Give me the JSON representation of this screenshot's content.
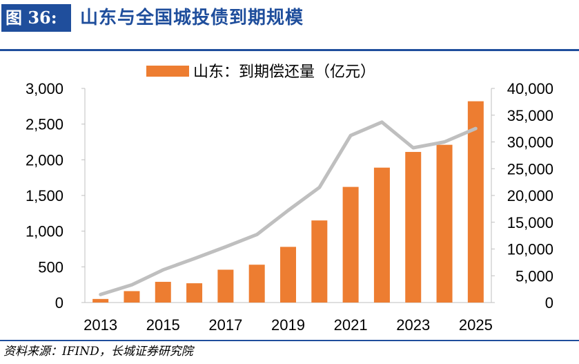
{
  "header": {
    "figure_label": "图 36:",
    "title": "山东与全国城投债到期规模"
  },
  "source_note": "资料来源：IFIND，长城证券研究院",
  "colors": {
    "brand_blue": "#1f4e9c",
    "bar": "#ed7d31",
    "line": "#bfbfbf",
    "axis": "#bfbfbf"
  },
  "chart_data": {
    "type": "bar",
    "legend": "山东：到期偿还量（亿元）",
    "legend_position": "top",
    "grid": false,
    "x": [
      "2013",
      "2014",
      "2015",
      "2016",
      "2017",
      "2018",
      "2019",
      "2020",
      "2021",
      "2022",
      "2023",
      "2024",
      "2025"
    ],
    "x_tick_labels": [
      "2013",
      "2015",
      "2017",
      "2019",
      "2021",
      "2023",
      "2025"
    ],
    "series": [
      {
        "name": "山东：到期偿还量（亿元）",
        "type": "bar",
        "axis": "left",
        "values": [
          50,
          160,
          290,
          270,
          460,
          530,
          780,
          1150,
          1620,
          1890,
          2110,
          2210,
          2820
        ]
      },
      {
        "type": "line",
        "axis": "right",
        "values": [
          1500,
          3300,
          6100,
          8200,
          10400,
          12700,
          17200,
          21500,
          31200,
          33700,
          28900,
          30000,
          32500
        ]
      }
    ],
    "y_left": {
      "lim": [
        0,
        3000
      ],
      "ticks": [
        "0",
        "500",
        "1,000",
        "1,500",
        "2,000",
        "2,500",
        "3,000"
      ]
    },
    "y_right": {
      "lim": [
        0,
        40000
      ],
      "ticks": [
        "0",
        "5,000",
        "10,000",
        "15,000",
        "20,000",
        "25,000",
        "30,000",
        "35,000",
        "40,000"
      ]
    }
  }
}
